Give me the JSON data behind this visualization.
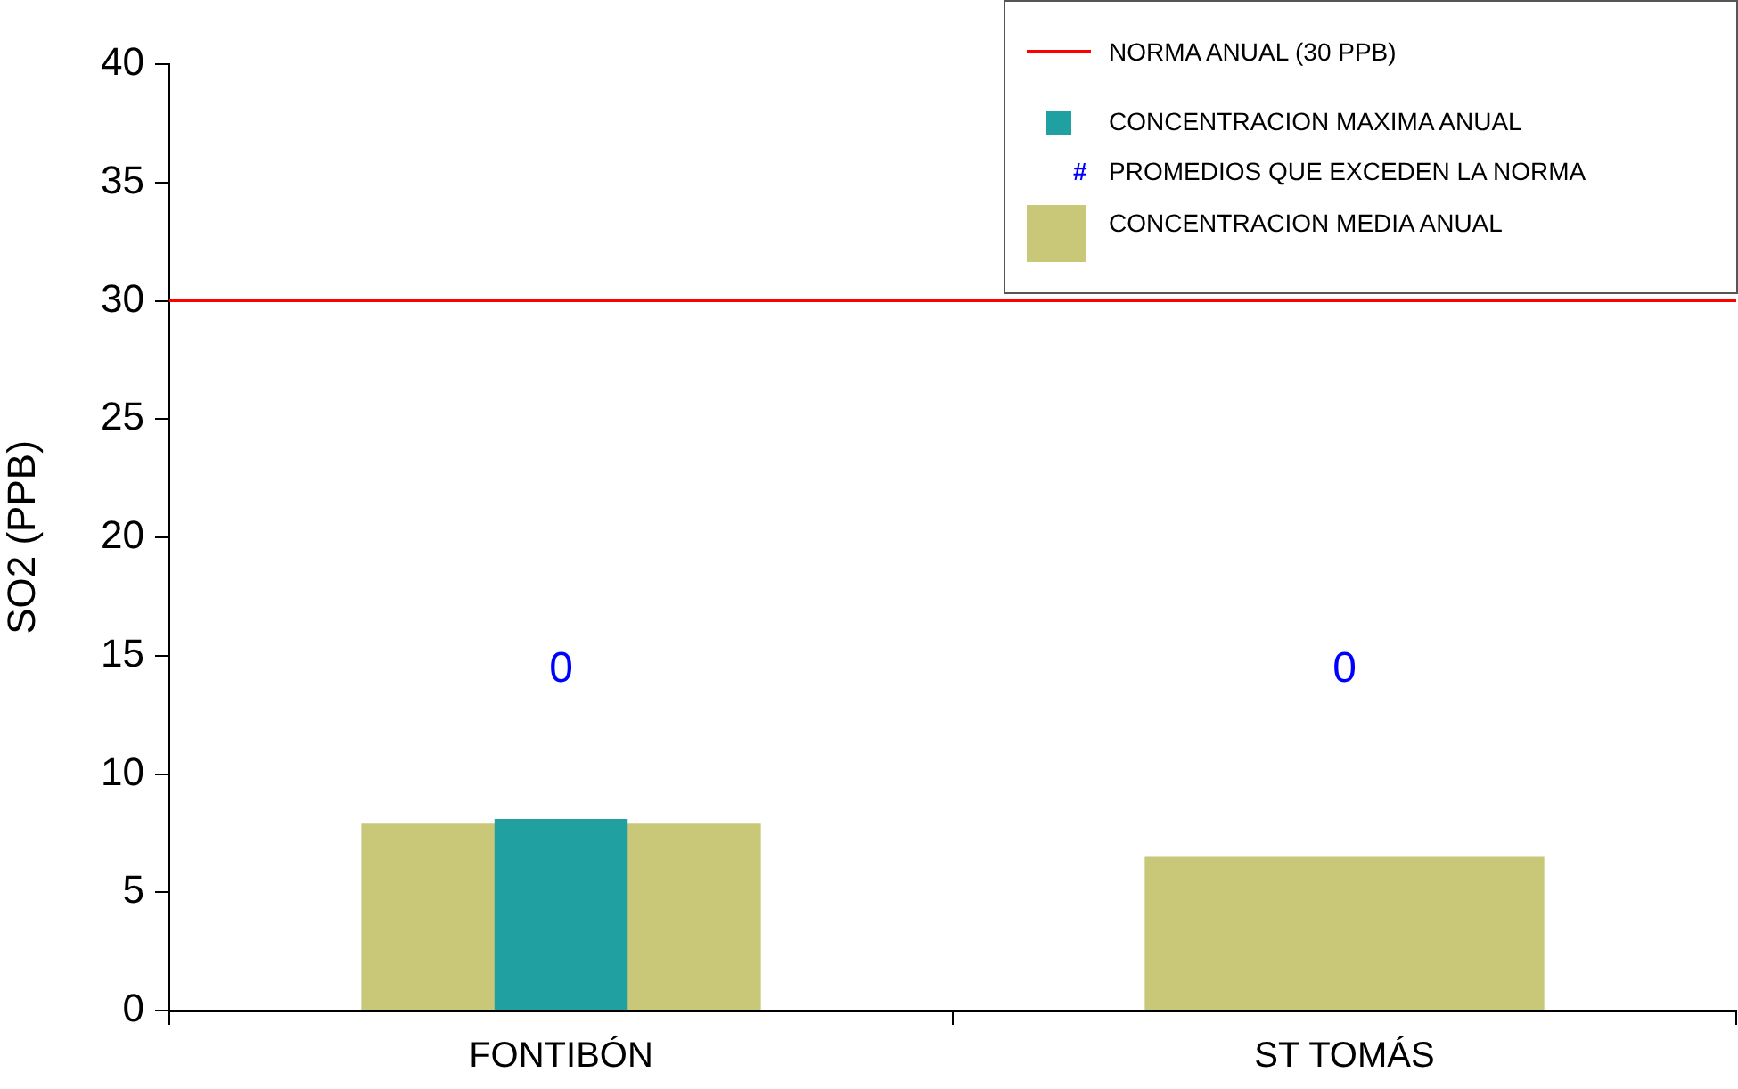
{
  "chart_data": {
    "type": "bar",
    "ylabel": "SO2 (PPB)",
    "categories": [
      "FONTIBÓN",
      "ST TOMÁS"
    ],
    "series": [
      {
        "name": "CONCENTRACION  MAXIMA ANUAL",
        "color": "#20a0a0",
        "values": [
          8.1,
          null
        ]
      },
      {
        "name": "CONCENTRACION MEDIA ANUAL",
        "color": "#c8c878",
        "values": [
          7.9,
          6.5
        ]
      }
    ],
    "ylim": [
      0,
      40
    ],
    "yticks": [
      0,
      5,
      10,
      15,
      20,
      25,
      30,
      35,
      40
    ],
    "grid": false,
    "legend": "top right",
    "ref_lines": [
      {
        "axis": "y",
        "value": 30,
        "label": "NORMA ANUAL (30 PPB)",
        "color": "#ff0000"
      }
    ],
    "annotations": [
      "#",
      "PROMEDIOS QUE EXCEDEN LA NORMA",
      "0",
      "0"
    ]
  }
}
